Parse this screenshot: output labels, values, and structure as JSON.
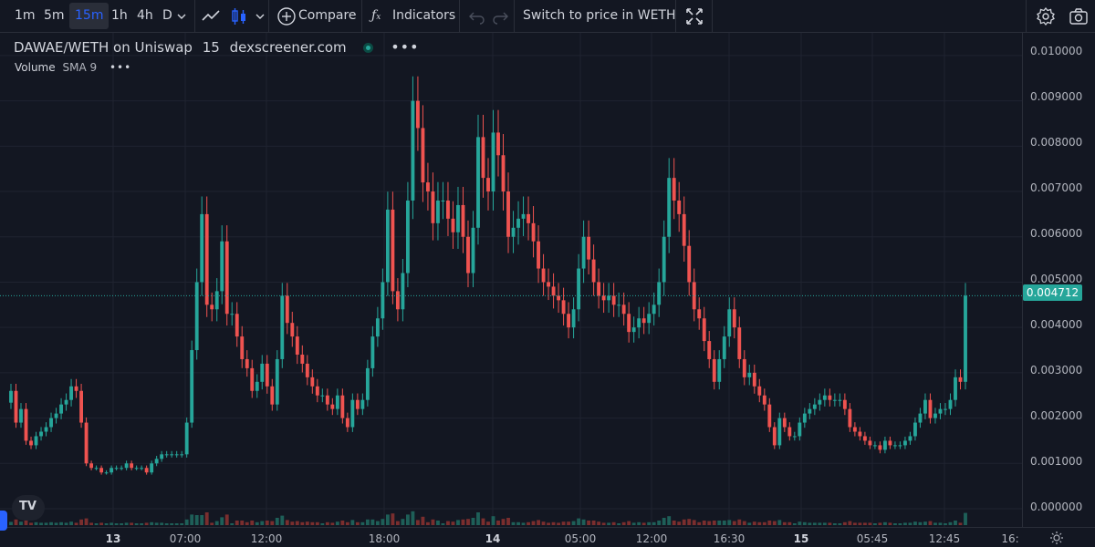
{
  "toolbar": {
    "resolutions": [
      "1m",
      "5m",
      "15m",
      "1h",
      "4h",
      "D"
    ],
    "active_resolution": "15m",
    "compare_label": "Compare",
    "indicators_label": "Indicators",
    "switch_price_label": "Switch to price in WETH"
  },
  "legend": {
    "pair": "DAWAE/WETH on Uniswap",
    "interval": "15",
    "source": "dexscreener.com",
    "volume_label": "Volume",
    "sma_label": "SMA 9"
  },
  "price_axis": {
    "ticks": [
      "0.010000",
      "0.009000",
      "0.008000",
      "0.007000",
      "0.006000",
      "0.005000",
      "0.004000",
      "0.003000",
      "0.002000",
      "0.001000",
      "0.000000"
    ],
    "last_price": "0.004712"
  },
  "time_axis": {
    "ticks": [
      "13",
      "07:00",
      "12:00",
      "18:00",
      "14",
      "05:00",
      "12:00",
      "16:30",
      "15",
      "05:45",
      "12:45",
      "16:"
    ]
  },
  "colors": {
    "up": "#26a69a",
    "down": "#ef5350",
    "background": "#131722",
    "grid": "#1f2330",
    "accent": "#2962ff"
  },
  "chart_data": {
    "type": "candlestick",
    "ylim": [
      0,
      0.0103
    ],
    "closes": [
      0.0026,
      0.0019,
      0.0022,
      0.0015,
      0.0014,
      0.0016,
      0.0017,
      0.0018,
      0.002,
      0.0021,
      0.0023,
      0.0024,
      0.0027,
      0.0026,
      0.0019,
      0.001,
      0.0009,
      0.0009,
      0.0008,
      0.0008,
      0.0009,
      0.0009,
      0.0009,
      0.001,
      0.0009,
      0.0009,
      0.0009,
      0.0008,
      0.001,
      0.0011,
      0.0012,
      0.0012,
      0.0012,
      0.0012,
      0.0012,
      0.0019,
      0.0035,
      0.005,
      0.0065,
      0.0045,
      0.0044,
      0.0048,
      0.0059,
      0.0043,
      0.0043,
      0.0038,
      0.0033,
      0.0031,
      0.0026,
      0.0028,
      0.0032,
      0.0027,
      0.0023,
      0.0033,
      0.0047,
      0.0041,
      0.0038,
      0.0034,
      0.0032,
      0.0029,
      0.0027,
      0.0025,
      0.0025,
      0.0023,
      0.0022,
      0.0025,
      0.002,
      0.0018,
      0.0024,
      0.0022,
      0.0024,
      0.0031,
      0.0038,
      0.0042,
      0.005,
      0.0066,
      0.0048,
      0.0044,
      0.0052,
      0.0068,
      0.009,
      0.0084,
      0.0072,
      0.007,
      0.0063,
      0.0068,
      0.0068,
      0.0064,
      0.0061,
      0.0067,
      0.006,
      0.0052,
      0.0062,
      0.0082,
      0.0073,
      0.007,
      0.0083,
      0.0078,
      0.007,
      0.006,
      0.0062,
      0.0064,
      0.0065,
      0.0063,
      0.0059,
      0.0053,
      0.005,
      0.0049,
      0.0047,
      0.0046,
      0.0043,
      0.004,
      0.0044,
      0.0053,
      0.006,
      0.0055,
      0.005,
      0.0047,
      0.0046,
      0.0047,
      0.0045,
      0.0045,
      0.0043,
      0.0039,
      0.004,
      0.0042,
      0.0041,
      0.0043,
      0.0045,
      0.005,
      0.006,
      0.0073,
      0.0068,
      0.0065,
      0.0058,
      0.005,
      0.0044,
      0.0042,
      0.0037,
      0.0033,
      0.0028,
      0.0033,
      0.0038,
      0.0044,
      0.004,
      0.0033,
      0.0029,
      0.003,
      0.0027,
      0.0025,
      0.0023,
      0.0018,
      0.0014,
      0.002,
      0.0018,
      0.0016,
      0.0016,
      0.0019,
      0.0021,
      0.0022,
      0.0023,
      0.0024,
      0.0025,
      0.0024,
      0.0024,
      0.0024,
      0.0022,
      0.0018,
      0.0017,
      0.0016,
      0.0015,
      0.0014,
      0.0014,
      0.0013,
      0.0015,
      0.0014,
      0.0014,
      0.0014,
      0.0015,
      0.0016,
      0.0019,
      0.0021,
      0.0024,
      0.002,
      0.0021,
      0.0022,
      0.0022,
      0.0024,
      0.0029,
      0.0028,
      0.0047
    ]
  }
}
